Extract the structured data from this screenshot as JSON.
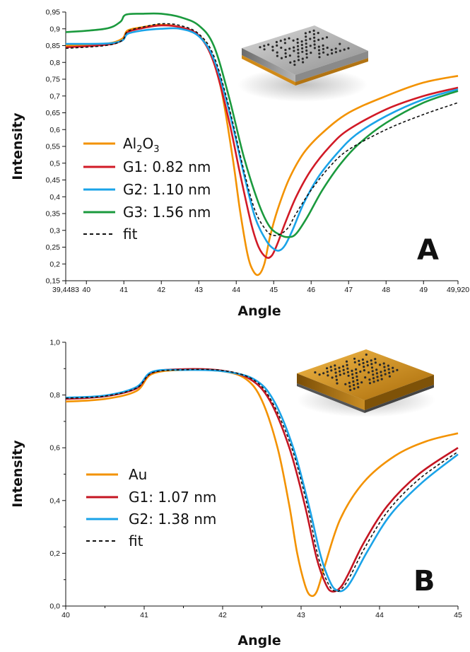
{
  "chart_data": [
    {
      "type": "line",
      "panel_label": "A",
      "xlabel": "Angle",
      "ylabel": "Intensity",
      "xlim": [
        39.4483,
        49.92
      ],
      "ylim": [
        0.15,
        0.95
      ],
      "x_tick_labels": [
        "39,4483",
        "40",
        "41",
        "42",
        "43",
        "44",
        "45",
        "46",
        "47",
        "48",
        "49",
        "49,920"
      ],
      "y_tick_labels": [
        "0,15",
        "0,2",
        "0,25",
        "0,3",
        "0,35",
        "0,4",
        "0,45",
        "0,5",
        "0,55",
        "0,6",
        "0,65",
        "0,7",
        "0,75",
        "0,8",
        "0,85",
        "0,9",
        "0,95"
      ],
      "legend": [
        {
          "label_main": "Al",
          "sub1": "2",
          "mid": "O",
          "sub2": "3"
        },
        {
          "label": "G1: 0.82 nm"
        },
        {
          "label": "G2: 1.10 nm"
        },
        {
          "label": "G3: 1.56 nm"
        },
        {
          "label": "fit"
        }
      ],
      "series": [
        {
          "name": "Al2O3",
          "color": "#f39200",
          "x": [
            39.4483,
            40.5,
            40.95,
            41.1,
            41.5,
            42,
            42.5,
            43,
            43.3,
            43.6,
            43.9,
            44.1,
            44.3,
            44.45,
            44.6,
            44.75,
            44.9,
            45.1,
            45.4,
            45.8,
            46.3,
            47,
            48,
            49,
            49.92
          ],
          "y": [
            0.85,
            0.855,
            0.87,
            0.895,
            0.905,
            0.912,
            0.905,
            0.88,
            0.83,
            0.72,
            0.52,
            0.36,
            0.23,
            0.18,
            0.168,
            0.2,
            0.28,
            0.36,
            0.45,
            0.53,
            0.59,
            0.65,
            0.7,
            0.74,
            0.76
          ]
        },
        {
          "name": "G1: 0.82 nm",
          "color": "#d11a26",
          "x": [
            39.4483,
            40.5,
            40.95,
            41.1,
            41.5,
            42,
            42.5,
            43,
            43.4,
            43.8,
            44.1,
            44.4,
            44.6,
            44.8,
            44.95,
            45.1,
            45.3,
            45.6,
            46,
            46.5,
            47,
            48,
            49,
            49.92
          ],
          "y": [
            0.845,
            0.852,
            0.865,
            0.89,
            0.902,
            0.91,
            0.905,
            0.88,
            0.8,
            0.63,
            0.47,
            0.32,
            0.25,
            0.22,
            0.225,
            0.26,
            0.32,
            0.4,
            0.48,
            0.55,
            0.6,
            0.66,
            0.7,
            0.725
          ]
        },
        {
          "name": "G2: 1.10 nm",
          "color": "#1aa3e8",
          "x": [
            39.4483,
            40.5,
            40.95,
            41.1,
            41.5,
            42,
            42.5,
            43,
            43.4,
            43.8,
            44.2,
            44.5,
            44.8,
            45.0,
            45.15,
            45.3,
            45.5,
            45.8,
            46.2,
            46.7,
            47.2,
            48,
            49,
            49.92
          ],
          "y": [
            0.855,
            0.856,
            0.865,
            0.885,
            0.895,
            0.9,
            0.9,
            0.878,
            0.81,
            0.66,
            0.47,
            0.34,
            0.27,
            0.245,
            0.24,
            0.255,
            0.3,
            0.38,
            0.46,
            0.53,
            0.585,
            0.64,
            0.69,
            0.72
          ]
        },
        {
          "name": "G3: 1.56 nm",
          "color": "#1b9a3e",
          "x": [
            39.4483,
            40.5,
            40.9,
            41.05,
            41.5,
            42,
            42.5,
            43,
            43.4,
            43.8,
            44.2,
            44.6,
            44.9,
            45.2,
            45.4,
            45.6,
            45.9,
            46.3,
            46.8,
            47.3,
            48,
            49,
            49.92
          ],
          "y": [
            0.89,
            0.9,
            0.92,
            0.942,
            0.945,
            0.945,
            0.935,
            0.91,
            0.85,
            0.7,
            0.52,
            0.38,
            0.31,
            0.285,
            0.28,
            0.29,
            0.34,
            0.42,
            0.5,
            0.56,
            0.62,
            0.68,
            0.715
          ]
        },
        {
          "name": "fit",
          "color": "#111111",
          "dashed": true,
          "x": [
            39.4483,
            40.5,
            40.95,
            41.1,
            41.5,
            42,
            42.5,
            43,
            43.4,
            43.8,
            44.2,
            44.5,
            44.8,
            45.0,
            45.2,
            45.4,
            45.6,
            46,
            46.5,
            47,
            48,
            49,
            49.92
          ],
          "y": [
            0.842,
            0.85,
            0.865,
            0.892,
            0.905,
            0.915,
            0.91,
            0.885,
            0.82,
            0.67,
            0.48,
            0.36,
            0.3,
            0.285,
            0.29,
            0.31,
            0.35,
            0.42,
            0.49,
            0.54,
            0.6,
            0.645,
            0.68
          ]
        }
      ]
    },
    {
      "type": "line",
      "panel_label": "B",
      "xlabel": "Angle",
      "ylabel": "Intensity",
      "xlim": [
        40,
        45
      ],
      "ylim": [
        0.0,
        1.0
      ],
      "x_tick_labels": [
        "40",
        "41",
        "42",
        "43",
        "44",
        "45"
      ],
      "y_tick_labels": [
        "0,0",
        "0,2",
        "0,4",
        "0,6",
        "0,8",
        "1,0"
      ],
      "legend": [
        {
          "label": "Au"
        },
        {
          "label": "G1: 1.07 nm"
        },
        {
          "label": "G2: 1.38 nm"
        },
        {
          "label": "fit"
        }
      ],
      "series": [
        {
          "name": "Au",
          "color": "#f39200",
          "x": [
            40,
            40.5,
            40.9,
            41.1,
            41.5,
            42,
            42.3,
            42.5,
            42.7,
            42.85,
            42.95,
            43.05,
            43.12,
            43.2,
            43.3,
            43.5,
            43.8,
            44.2,
            44.6,
            45
          ],
          "y": [
            0.775,
            0.785,
            0.815,
            0.88,
            0.895,
            0.89,
            0.86,
            0.78,
            0.6,
            0.38,
            0.2,
            0.08,
            0.04,
            0.055,
            0.15,
            0.33,
            0.47,
            0.57,
            0.625,
            0.655
          ]
        },
        {
          "name": "G1: 1.07 nm",
          "color": "#c41522",
          "x": [
            40,
            40.5,
            40.9,
            41.1,
            41.5,
            42,
            42.35,
            42.6,
            42.85,
            43.05,
            43.2,
            43.32,
            43.4,
            43.5,
            43.6,
            43.8,
            44.1,
            44.5,
            45
          ],
          "y": [
            0.785,
            0.795,
            0.825,
            0.885,
            0.898,
            0.892,
            0.86,
            0.78,
            0.6,
            0.38,
            0.18,
            0.08,
            0.055,
            0.07,
            0.12,
            0.24,
            0.38,
            0.5,
            0.6
          ]
        },
        {
          "name": "G2: 1.38 nm",
          "color": "#1aa3e8",
          "x": [
            40,
            40.5,
            40.9,
            41.1,
            41.5,
            42,
            42.4,
            42.65,
            42.9,
            43.1,
            43.25,
            43.38,
            43.47,
            43.55,
            43.65,
            43.85,
            44.15,
            44.55,
            45
          ],
          "y": [
            0.79,
            0.798,
            0.83,
            0.888,
            0.895,
            0.89,
            0.86,
            0.78,
            0.6,
            0.38,
            0.19,
            0.085,
            0.058,
            0.062,
            0.1,
            0.21,
            0.35,
            0.47,
            0.575
          ]
        },
        {
          "name": "fit",
          "color": "#111111",
          "dashed": true,
          "x": [
            40,
            40.5,
            40.9,
            41.1,
            41.5,
            42,
            42.38,
            42.62,
            42.88,
            43.08,
            43.22,
            43.35,
            43.44,
            43.52,
            43.62,
            43.82,
            44.12,
            44.52,
            45
          ],
          "y": [
            0.788,
            0.796,
            0.826,
            0.884,
            0.896,
            0.893,
            0.86,
            0.78,
            0.6,
            0.38,
            0.185,
            0.082,
            0.056,
            0.066,
            0.11,
            0.225,
            0.365,
            0.485,
            0.585
          ]
        }
      ]
    }
  ],
  "colors": {
    "axis": "#111111",
    "slab_gold": "#c9860f",
    "slab_grey": "#a7a7a7"
  },
  "icons": [
    "sample-3d-grey-icon",
    "sample-3d-gold-icon"
  ]
}
